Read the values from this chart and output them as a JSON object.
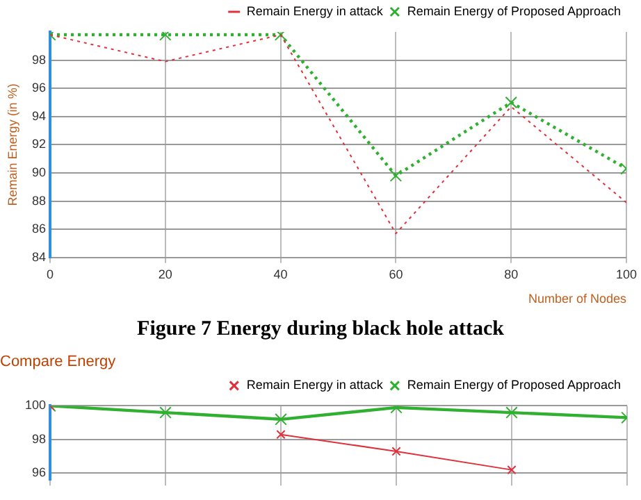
{
  "chart_data": [
    {
      "type": "line",
      "ylabel": "Remain Energy (in %)",
      "xlabel": "Number of Nodes",
      "annotations": [
        "Figure 7 Energy during black hole attack"
      ],
      "x": [
        0,
        20,
        40,
        60,
        80,
        100
      ],
      "xlim": [
        0,
        100
      ],
      "xticks": [
        0,
        20,
        40,
        60,
        80,
        100
      ],
      "ylim": [
        84,
        100
      ],
      "yticks": [
        84,
        86,
        88,
        90,
        92,
        94,
        96,
        98
      ],
      "grid": true,
      "legend": "top right",
      "line_style": "dotted",
      "series": [
        {
          "name": "Remain Energy in attack",
          "color": "#e0303a",
          "marker": "none",
          "values": [
            99.8,
            97.9,
            99.8,
            85.7,
            94.7,
            87.9
          ]
        },
        {
          "name": "Remain Energy of Proposed Approach",
          "color": "#30b030",
          "marker": "cross",
          "values": [
            99.8,
            99.8,
            99.8,
            89.8,
            95.0,
            90.3
          ]
        }
      ]
    },
    {
      "type": "line",
      "title": "Compare Energy",
      "x": [
        0,
        20,
        40,
        60,
        80,
        100
      ],
      "xlim": [
        0,
        100
      ],
      "xticks": [
        {
          "value": 0,
          "label": null
        },
        {
          "value": 20,
          "label": null
        },
        {
          "value": 40,
          "label": null
        },
        {
          "value": 60,
          "label": null
        },
        {
          "value": 80,
          "label": null
        },
        {
          "value": 100,
          "label": null
        }
      ],
      "ylim": [
        95.6,
        100
      ],
      "yticks": [
        96,
        98,
        100
      ],
      "tick_labels": "y",
      "grid": true,
      "legend": "top right",
      "line_style": "solid",
      "series": [
        {
          "name": "Remain Energy in attack",
          "color": "#e0303a",
          "marker": "cross",
          "values": [
            100,
            null,
            98.3,
            97.3,
            96.2,
            null
          ]
        },
        {
          "name": "Remain Energy of Proposed Approach",
          "color": "#30b030",
          "marker": "cross",
          "values": [
            100,
            99.6,
            99.2,
            99.9,
            99.6,
            99.3
          ]
        }
      ]
    }
  ]
}
